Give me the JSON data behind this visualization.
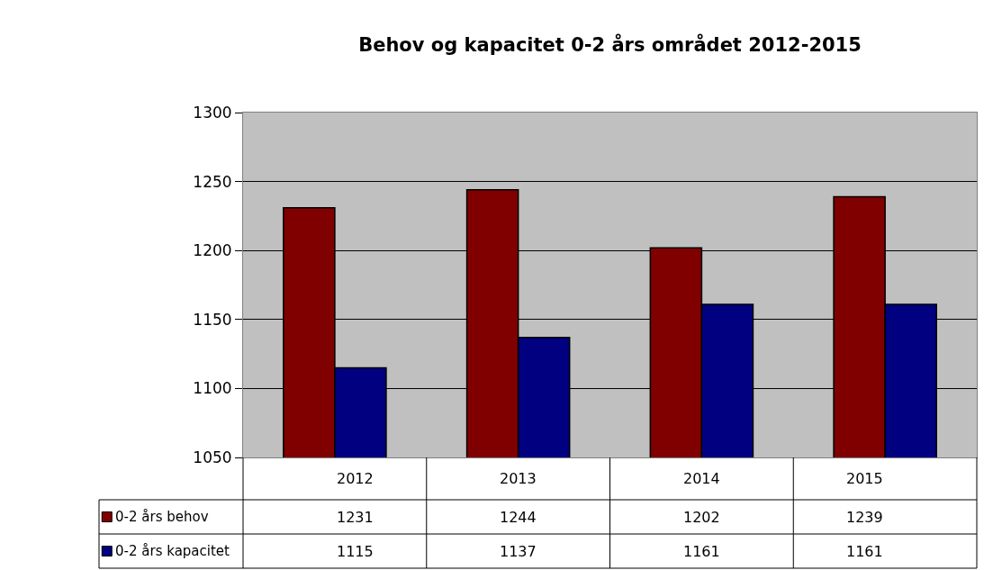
{
  "chart_data": {
    "type": "bar",
    "title": "Behov og kapacitet 0-2 års området 2012-2015",
    "categories": [
      "2012",
      "2013",
      "2014",
      "2015"
    ],
    "series": [
      {
        "name": "0-2 års behov",
        "color": "#800000",
        "values": [
          1231,
          1244,
          1202,
          1239
        ]
      },
      {
        "name": "0-2 års kapacitet",
        "color": "#000080",
        "values": [
          1115,
          1137,
          1161,
          1161
        ]
      }
    ],
    "ylim": [
      1050,
      1300
    ],
    "yticks": [
      1050,
      1100,
      1150,
      1200,
      1250,
      1300
    ],
    "grid": "y",
    "legend": "bottom left",
    "data_labels": true
  }
}
